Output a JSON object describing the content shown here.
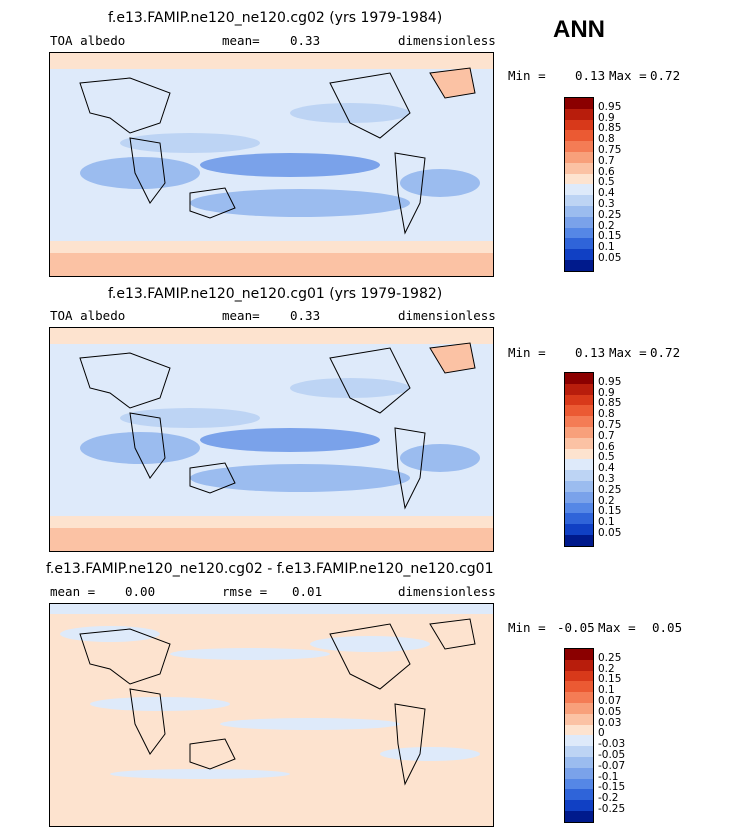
{
  "season": "ANN",
  "panels": [
    {
      "title": "f.e13.FAMIP.ne120_ne120.cg02 (yrs 1979-1984)",
      "left_label": "TOA albedo",
      "stat_label": "mean=",
      "stat_value": "0.33",
      "units": "dimensionless",
      "min_label": "Min =",
      "min_value": "0.13",
      "max_label": "Max =",
      "max_value": "0.72",
      "colorbar": {
        "labels": [
          "0.95",
          "0.9",
          "0.85",
          "0.8",
          "0.75",
          "0.7",
          "0.6",
          "0.5",
          "0.4",
          "0.3",
          "0.25",
          "0.2",
          "0.15",
          "0.1",
          "0.05"
        ],
        "colors": [
          "#8b0000",
          "#b81d0c",
          "#d8391a",
          "#eb5a33",
          "#f47c55",
          "#f8a07b",
          "#fbc2a4",
          "#fde3cf",
          "#deeafa",
          "#bdd4f4",
          "#9bbcef",
          "#7aa2ea",
          "#5587e6",
          "#2f64d9",
          "#1040c4",
          "#001a8c"
        ]
      }
    },
    {
      "title": "f.e13.FAMIP.ne120_ne120.cg01 (yrs 1979-1982)",
      "left_label": "TOA albedo",
      "stat_label": "mean=",
      "stat_value": "0.33",
      "units": "dimensionless",
      "min_label": "Min =",
      "min_value": "0.13",
      "max_label": "Max =",
      "max_value": "0.72",
      "colorbar": {
        "labels": [
          "0.95",
          "0.9",
          "0.85",
          "0.8",
          "0.75",
          "0.7",
          "0.6",
          "0.5",
          "0.4",
          "0.3",
          "0.25",
          "0.2",
          "0.15",
          "0.1",
          "0.05"
        ],
        "colors": [
          "#8b0000",
          "#b81d0c",
          "#d8391a",
          "#eb5a33",
          "#f47c55",
          "#f8a07b",
          "#fbc2a4",
          "#fde3cf",
          "#deeafa",
          "#bdd4f4",
          "#9bbcef",
          "#7aa2ea",
          "#5587e6",
          "#2f64d9",
          "#1040c4",
          "#001a8c"
        ]
      }
    },
    {
      "title": "f.e13.FAMIP.ne120_ne120.cg02 - f.e13.FAMIP.ne120_ne120.cg01",
      "left_label": "mean =",
      "left_value": "0.00",
      "stat_label": "rmse =",
      "stat_value": "0.01",
      "units": "dimensionless",
      "min_label": "Min =",
      "min_value": "-0.05",
      "max_label": "Max =",
      "max_value": "0.05",
      "colorbar": {
        "labels": [
          "0.25",
          "0.2",
          "0.15",
          "0.1",
          "0.07",
          "0.05",
          "0.03",
          "0",
          "-0.03",
          "-0.05",
          "-0.07",
          "-0.1",
          "-0.15",
          "-0.2",
          "-0.25"
        ],
        "colors": [
          "#8b0000",
          "#b81d0c",
          "#d8391a",
          "#eb5a33",
          "#f47c55",
          "#f8a07b",
          "#fbc2a4",
          "#fde3cf",
          "#deeafa",
          "#bdd4f4",
          "#9bbcef",
          "#7aa2ea",
          "#5587e6",
          "#2f64d9",
          "#1040c4",
          "#001a8c"
        ]
      }
    }
  ]
}
